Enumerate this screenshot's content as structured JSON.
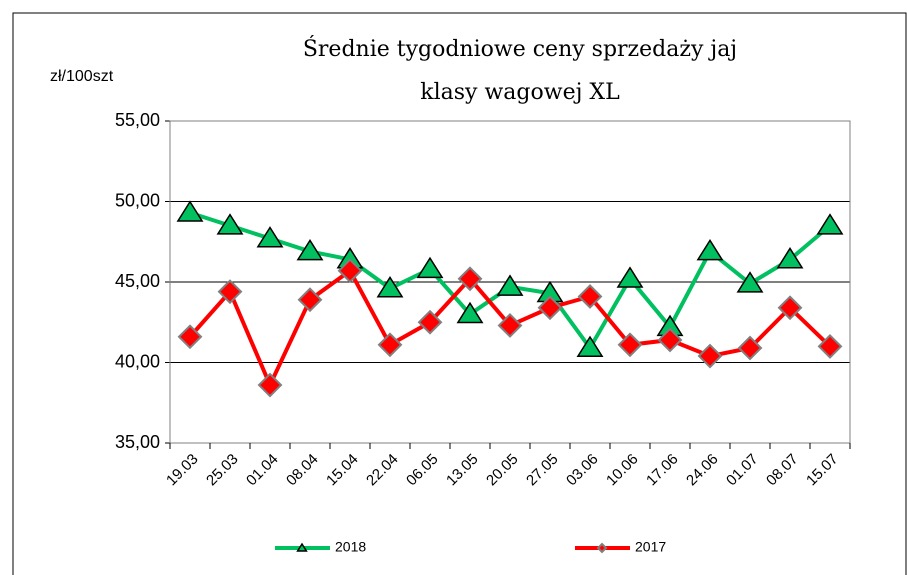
{
  "chart_data": {
    "type": "line",
    "title": [
      "Średnie tygodniowe ceny sprzedaży jaj",
      "klasy wagowej XL"
    ],
    "y_label": "zł/100szt",
    "categories": [
      "19.03",
      "25.03",
      "01.04",
      "08.04",
      "15.04",
      "22.04",
      "06.05",
      "13.05",
      "20.05",
      "27.05",
      "03.06",
      "10.06",
      "17.06",
      "24.06",
      "01.07",
      "08.07",
      "15.07"
    ],
    "series": [
      {
        "name": "2018",
        "color": "#00c060",
        "marker": "triangle",
        "values": [
          49.3,
          48.5,
          47.7,
          46.9,
          46.4,
          44.6,
          45.8,
          43.0,
          44.7,
          44.3,
          40.9,
          45.2,
          42.2,
          46.9,
          44.9,
          46.4,
          48.5
        ]
      },
      {
        "name": "2017",
        "color": "#ff0000",
        "marker": "diamond",
        "values": [
          41.6,
          44.4,
          38.6,
          43.9,
          45.7,
          41.1,
          42.5,
          45.2,
          42.3,
          43.4,
          44.1,
          41.1,
          41.4,
          40.4,
          40.9,
          43.4,
          41.0
        ]
      }
    ],
    "ylim": [
      35,
      55
    ],
    "yticks": [
      {
        "value": 35,
        "label": "35,00"
      },
      {
        "value": 40,
        "label": "40,00"
      },
      {
        "value": 45,
        "label": "45,00"
      },
      {
        "value": 50,
        "label": "50,00"
      },
      {
        "value": 55,
        "label": "55,00"
      }
    ],
    "grid": true
  }
}
